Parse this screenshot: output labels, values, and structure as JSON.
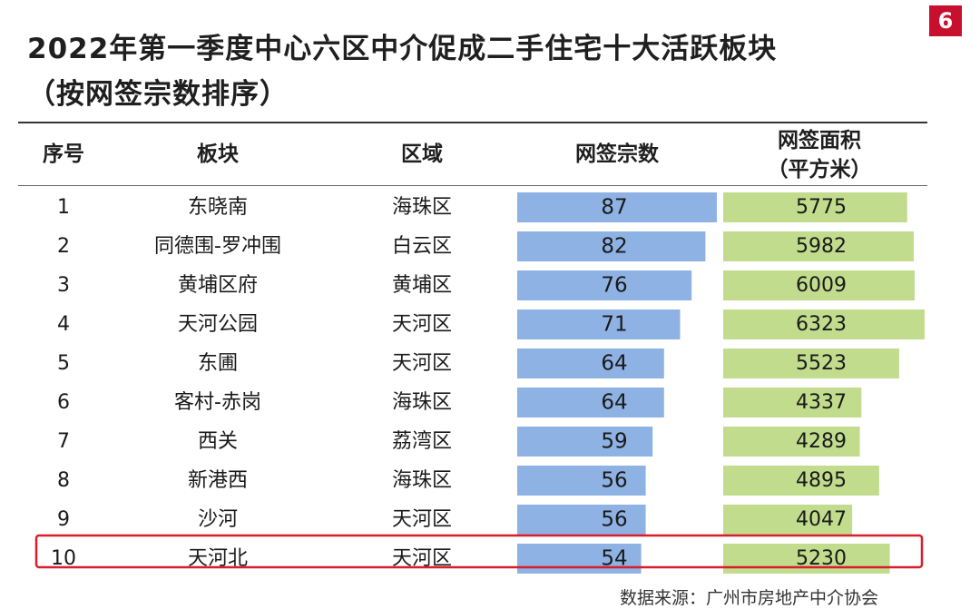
{
  "badge": "6",
  "title_line1": "2022年第一季度中心六区中介促成二手住宅十大活跃板块",
  "title_line2": "（按网签宗数排序）",
  "headers": {
    "rank": "序号",
    "block": "板块",
    "district": "区域",
    "count": "网签宗数",
    "area_line1": "网签面积",
    "area_line2": "（平方米）"
  },
  "source": "数据来源：广州市房地产中介协会",
  "colors": {
    "count_bar": "#8eb2e3",
    "area_bar": "#c2dc8e",
    "highlight": "#d81e2a"
  },
  "chart_data": {
    "type": "table",
    "highlight_rank": "10",
    "rows": [
      {
        "rank": "1",
        "block": "东晓南",
        "district": "海珠区",
        "count": 87,
        "area": 5775
      },
      {
        "rank": "2",
        "block": "同德围-罗冲围",
        "district": "白云区",
        "count": 82,
        "area": 5982
      },
      {
        "rank": "3",
        "block": "黄埔区府",
        "district": "黄埔区",
        "count": 76,
        "area": 6009
      },
      {
        "rank": "4",
        "block": "天河公园",
        "district": "天河区",
        "count": 71,
        "area": 6323
      },
      {
        "rank": "5",
        "block": "东圃",
        "district": "天河区",
        "count": 64,
        "area": 5523
      },
      {
        "rank": "6",
        "block": "客村-赤岗",
        "district": "海珠区",
        "count": 64,
        "area": 4337
      },
      {
        "rank": "7",
        "block": "西关",
        "district": "荔湾区",
        "count": 59,
        "area": 4289
      },
      {
        "rank": "8",
        "block": "新港西",
        "district": "海珠区",
        "count": 56,
        "area": 4895
      },
      {
        "rank": "9",
        "block": "沙河",
        "district": "天河区",
        "count": 56,
        "area": 4047
      },
      {
        "rank": "10",
        "block": "天河北",
        "district": "天河区",
        "count": 54,
        "area": 5230
      }
    ]
  }
}
